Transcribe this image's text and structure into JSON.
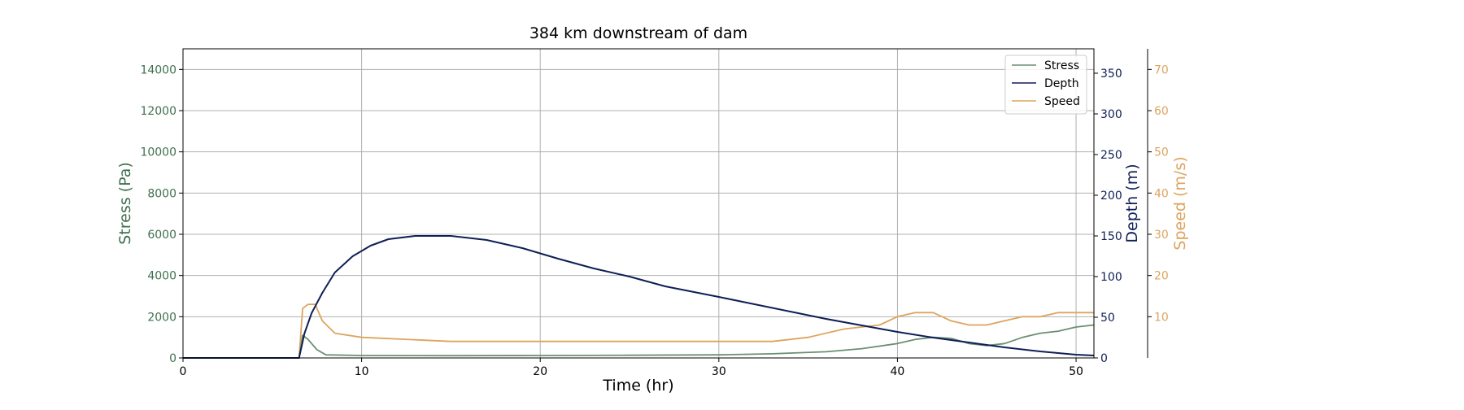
{
  "colors": {
    "stress": "#6b8f74",
    "stress_axis": "#3f7050",
    "depth": "#0f1f55",
    "speed": "#dda45f",
    "grid": "#b0b0b0"
  },
  "chart_data": {
    "type": "line",
    "title": "384 km downstream of dam",
    "xlabel": "Time (hr)",
    "xlim": [
      0,
      51
    ],
    "xticks": [
      "0",
      "10",
      "20",
      "30",
      "40",
      "50"
    ],
    "grid": true,
    "legend_position": "top-right",
    "axes": {
      "stress": {
        "label": "Stress (Pa)",
        "ylim": [
          0,
          15000
        ],
        "ticks": [
          "0",
          "2000",
          "4000",
          "6000",
          "8000",
          "10000",
          "12000",
          "14000"
        ]
      },
      "depth": {
        "label": "Depth (m)",
        "ylim": [
          0,
          380
        ],
        "ticks": [
          "0",
          "50",
          "100",
          "150",
          "200",
          "250",
          "300",
          "350"
        ]
      },
      "speed": {
        "label": "Speed (m/s)",
        "ylim": [
          0,
          75
        ],
        "ticks": [
          "10",
          "20",
          "30",
          "40",
          "50",
          "60",
          "70"
        ]
      }
    },
    "series": [
      {
        "name": "Stress",
        "axis": "stress",
        "x": [
          0,
          6.5,
          6.7,
          7.0,
          7.5,
          8,
          10,
          15,
          20,
          25,
          30,
          33,
          36,
          38,
          40,
          41,
          42,
          43,
          44,
          45,
          46,
          47,
          48,
          49,
          50,
          51
        ],
        "y": [
          0,
          0,
          1100,
          900,
          400,
          150,
          120,
          110,
          120,
          130,
          150,
          200,
          300,
          450,
          700,
          900,
          1000,
          950,
          700,
          600,
          700,
          1000,
          1200,
          1300,
          1500,
          1600
        ]
      },
      {
        "name": "Depth",
        "axis": "depth",
        "x": [
          0,
          6.5,
          6.8,
          7.2,
          7.8,
          8.5,
          9.5,
          10.5,
          11.5,
          13,
          15,
          17,
          19,
          21,
          23,
          25,
          27,
          30,
          32,
          34,
          36,
          38,
          40,
          42,
          44,
          46,
          48,
          50,
          51
        ],
        "y": [
          0,
          0,
          30,
          55,
          80,
          105,
          125,
          138,
          146,
          150,
          150,
          145,
          135,
          122,
          110,
          100,
          88,
          75,
          66,
          57,
          48,
          40,
          32,
          25,
          19,
          13,
          8,
          4,
          3
        ]
      },
      {
        "name": "Speed",
        "axis": "speed",
        "x": [
          0,
          6.5,
          6.7,
          7.0,
          7.4,
          7.8,
          8.5,
          10,
          15,
          20,
          25,
          30,
          33,
          35,
          37,
          39,
          40,
          41,
          42,
          43,
          44,
          45,
          46,
          47,
          48,
          49,
          50,
          51
        ],
        "y": [
          0,
          0,
          12,
          13,
          13,
          9,
          6,
          5,
          4,
          4,
          4,
          4,
          4,
          5,
          7,
          8,
          10,
          11,
          11,
          9,
          8,
          8,
          9,
          10,
          10,
          11,
          11,
          11
        ]
      }
    ]
  }
}
